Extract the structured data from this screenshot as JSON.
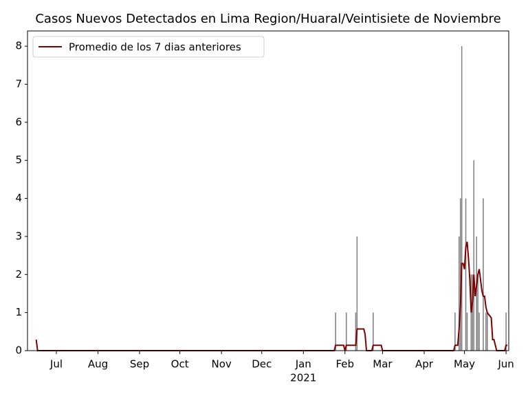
{
  "chart_data": {
    "type": "bar",
    "title": "Casos Nuevos Detectados en Lima Region/Huaral/Veintisiete de Noviembre",
    "x": [
      208,
      216,
      223,
      224,
      236,
      297,
      300,
      301,
      302,
      305,
      306,
      309,
      310,
      311,
      313,
      314,
      315,
      318,
      320,
      321,
      335
    ],
    "values": [
      1,
      1,
      1,
      3,
      1,
      1,
      3,
      4,
      8,
      4,
      1,
      2,
      2,
      5,
      3,
      2,
      1,
      4,
      1,
      1,
      1
    ],
    "color": "#808080",
    "line": {
      "type": "line",
      "name": "Promedio de los 7 dias anteriores",
      "color": "#800000",
      "x": [
        -15,
        -14,
        207,
        208,
        214,
        215,
        216,
        222,
        223,
        224,
        229,
        230,
        231,
        235,
        236,
        242,
        243,
        296,
        297,
        299,
        300,
        301,
        302,
        303,
        304,
        305,
        306,
        307,
        308,
        309,
        310,
        311,
        312,
        313,
        314,
        315,
        316,
        317,
        318,
        319,
        320,
        321,
        324,
        325,
        326,
        327,
        328,
        334,
        335,
        336
      ],
      "values": [
        0.29,
        0,
        0,
        0.14,
        0.14,
        0,
        0.14,
        0.14,
        0.14,
        0.57,
        0.57,
        0.43,
        0,
        0,
        0.14,
        0.14,
        0,
        0,
        0.14,
        0.14,
        0.57,
        1.14,
        2.29,
        2.29,
        2.14,
        2.71,
        2.86,
        2.43,
        1.86,
        1,
        1.29,
        2,
        1.43,
        1.71,
        2,
        2.14,
        1.86,
        1.57,
        1.43,
        1.43,
        1.14,
        1,
        0.86,
        0.29,
        0.29,
        0.14,
        0,
        0,
        0.14,
        0.14
      ]
    },
    "xlim": [
      -21.5,
      337
    ],
    "xticks": [
      {
        "value": 0,
        "label": "Jul"
      },
      {
        "value": 31,
        "label": "Aug"
      },
      {
        "value": 62,
        "label": "Sep"
      },
      {
        "value": 92,
        "label": "Oct"
      },
      {
        "value": 123,
        "label": "Nov"
      },
      {
        "value": 153,
        "label": "Dec"
      },
      {
        "value": 184,
        "label": "Jan"
      },
      {
        "value": 215,
        "label": "Feb"
      },
      {
        "value": 243,
        "label": "Mar"
      },
      {
        "value": 274,
        "label": "Apr"
      },
      {
        "value": 304,
        "label": "May"
      },
      {
        "value": 335,
        "label": "Jun"
      }
    ],
    "year_label": "2021",
    "ylim": [
      0,
      8.4
    ],
    "yticks": [
      0,
      1,
      2,
      3,
      4,
      5,
      6,
      7,
      8
    ],
    "legend": "upper left"
  }
}
